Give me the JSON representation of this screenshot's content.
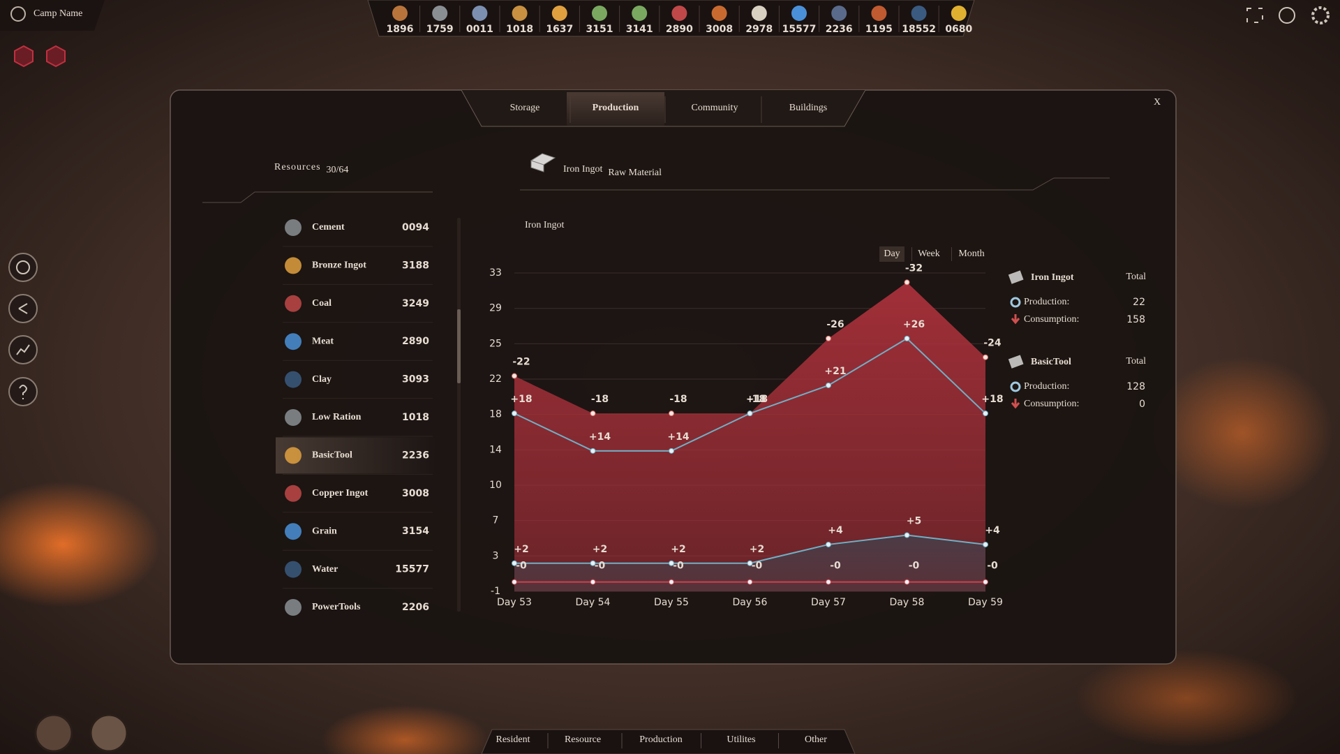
{
  "hud": {
    "camp_name": "Camp Name",
    "resources": [
      1896,
      1759,
      "0011",
      1018,
      1637,
      3151,
      3141,
      2890,
      3008,
      2978,
      15577,
      2236,
      1195,
      18552,
      "0680"
    ]
  },
  "tabs": [
    "Storage",
    "Production",
    "Community",
    "Buildings"
  ],
  "active_tab": 1,
  "close": "X",
  "resources_panel": {
    "title": "Resources",
    "count": "30/64",
    "selected": 6,
    "items": [
      {
        "name": "Cement",
        "amount": "0094"
      },
      {
        "name": "Bronze Ingot",
        "amount": 3188
      },
      {
        "name": "Coal",
        "amount": 3249
      },
      {
        "name": "Meat",
        "amount": 2890
      },
      {
        "name": "Clay",
        "amount": 3093
      },
      {
        "name": "Low Ration",
        "amount": 1018
      },
      {
        "name": "BasicTool",
        "amount": 2236
      },
      {
        "name": "Copper Ingot",
        "amount": 3008
      },
      {
        "name": "Grain",
        "amount": 3154
      },
      {
        "name": "Water",
        "amount": 15577
      },
      {
        "name": "PowerTools",
        "amount": 2206
      }
    ]
  },
  "detail": {
    "title": "Iron Ingot",
    "subtitle": "Raw Material"
  },
  "chart_data": {
    "type": "area",
    "title": "Iron Ingot",
    "periods": [
      "Day",
      "Week",
      "Month"
    ],
    "active_period": 0,
    "categories": [
      "Day 53",
      "Day 54",
      "Day 55",
      "Day 56",
      "Day 57",
      "Day 58",
      "Day 59"
    ],
    "ylim": [
      -1,
      33
    ],
    "yticks": [
      {
        "value": -1,
        "label": "-1"
      },
      {
        "value": 2.78,
        "label": "3"
      },
      {
        "value": 6.56,
        "label": "7"
      },
      {
        "value": 10.33,
        "label": "10"
      },
      {
        "value": 14.11,
        "label": "14"
      },
      {
        "value": 17.89,
        "label": "18"
      },
      {
        "value": 21.67,
        "label": "22"
      },
      {
        "value": 25.44,
        "label": "25"
      },
      {
        "value": 29.22,
        "label": "29"
      },
      {
        "value": 33,
        "label": "33"
      }
    ],
    "grid": true,
    "series": [
      {
        "color": "#e06a68",
        "fill": "#a8303a",
        "values": [
          22,
          18,
          18,
          18,
          26,
          32,
          24
        ],
        "value_labels": [
          "-22",
          "-18",
          "-18",
          "-18",
          "-26",
          "-32",
          "-24"
        ]
      },
      {
        "color": "#6fb0c6",
        "values": [
          18,
          14,
          14,
          18,
          21,
          26,
          18
        ],
        "value_labels": [
          "+18",
          "+14",
          "+14",
          "+18",
          "+21",
          "+26",
          "+18"
        ]
      },
      {
        "color": "#6fb0c6",
        "fill": "#4a3c46",
        "values": [
          2,
          2,
          2,
          2,
          4,
          5,
          4
        ],
        "value_labels": [
          "+2",
          "+2",
          "+2",
          "+2",
          "+4",
          "+5",
          "+4"
        ]
      },
      {
        "color": "#d0404a",
        "values": [
          0,
          0,
          0,
          0,
          0,
          0,
          0
        ],
        "value_labels": [
          "-0",
          "-0",
          "-0",
          "-0",
          "-0",
          "-0",
          "-0"
        ]
      }
    ],
    "summary": [
      {
        "name": "Iron Ingot",
        "total": "Total",
        "rows": [
          {
            "label": "Production:",
            "value": 22
          },
          {
            "label": "Consumption:",
            "value": 158
          }
        ]
      },
      {
        "name": "BasicTool",
        "total": "Total",
        "rows": [
          {
            "label": "Production:",
            "value": 128
          },
          {
            "label": "Consumption:",
            "value": 0
          }
        ]
      }
    ]
  },
  "bottom_nav": [
    "Resident",
    "Resource",
    "Production",
    "Utilites",
    "Other"
  ]
}
